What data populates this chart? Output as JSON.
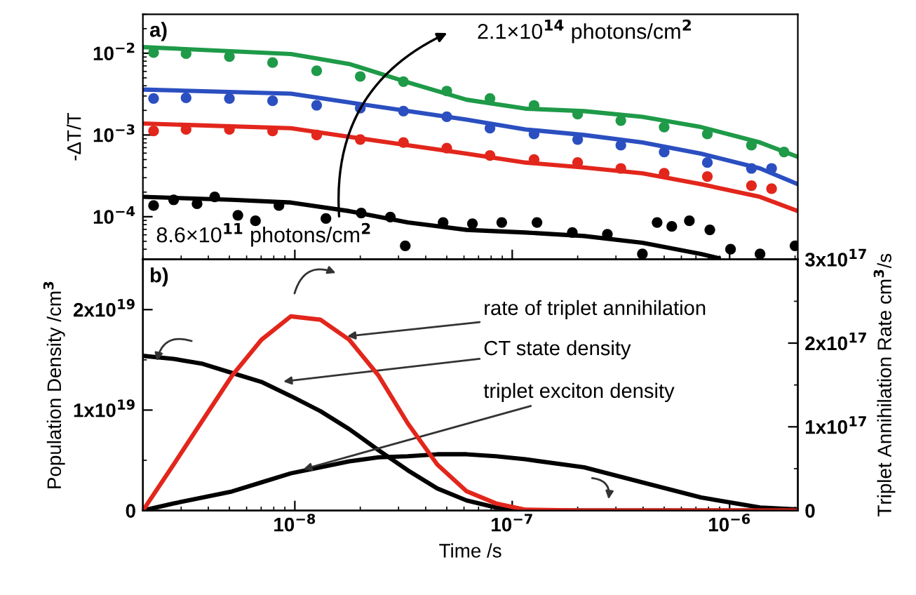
{
  "chart_data": [
    {
      "type": "line",
      "ylabel": "-ΔT/T",
      "log": "xy",
      "grid": false,
      "legend": false,
      "tick_labels": "y",
      "xlim": [
        2e-09,
        2.06e-06
      ],
      "xticks": [
        {
          "value": 1e-08,
          "label": null
        },
        {
          "value": 1e-07,
          "label": null
        },
        {
          "value": 1e-06,
          "label": null
        }
      ],
      "ylim": [
        3e-05,
        0.03
      ],
      "yticks": [
        {
          "value": 0.0001,
          "label": "10$^{−4}$"
        },
        {
          "value": 0.001,
          "label": "10$^{−3}$"
        },
        {
          "value": 0.01,
          "label": "10$^{−2}$"
        }
      ],
      "annotations": [
        "a)",
        "2.1×10$^{14}$ photons/cm$^{2}$",
        "8.6×10$^{11}$ photons/cm$^{2}$"
      ],
      "series": [
        {
          "type": "scatter",
          "marker": "circle",
          "color": "#1e9a48",
          "x": [
            2.24e-09,
            3.16e-09,
            5e-09,
            7.9e-09,
            1.26e-08,
            2e-08,
            3.16e-08,
            5e-08,
            7.9e-08,
            1.26e-07,
            2e-07,
            3.16e-07,
            5e-07,
            7.9e-07,
            1.26e-06,
            1.78e-06
          ],
          "values": [
            0.0102,
            0.0099,
            0.0091,
            0.0077,
            0.0061,
            0.0052,
            0.0045,
            0.00345,
            0.0028,
            0.0023,
            0.0018,
            0.0015,
            0.00125,
            0.00103,
            0.00075,
            0.00062
          ]
        },
        {
          "type": "scatter",
          "marker": "circle",
          "color": "#2b4fc0",
          "x": [
            2.24e-09,
            3.16e-09,
            5e-09,
            7.9e-09,
            1.26e-08,
            2e-08,
            3.16e-08,
            5e-08,
            7.9e-08,
            1.26e-07,
            2e-07,
            3.16e-07,
            5e-07,
            7.9e-07,
            1.26e-06,
            1.56e-06
          ],
          "values": [
            0.0028,
            0.00285,
            0.0028,
            0.00262,
            0.00231,
            0.00213,
            0.00196,
            0.00167,
            0.00121,
            0.00103,
            0.00088,
            0.00075,
            0.00062,
            0.00046,
            0.00039,
            0.00039
          ]
        },
        {
          "type": "scatter",
          "marker": "circle",
          "color": "#e2261c",
          "x": [
            2.24e-09,
            3.16e-09,
            5e-09,
            7.9e-09,
            1.26e-08,
            2e-08,
            3.16e-08,
            5e-08,
            7.9e-08,
            1.26e-07,
            2e-07,
            3.16e-07,
            5e-07,
            7.9e-07,
            1.26e-06,
            1.56e-06
          ],
          "values": [
            0.00112,
            0.00117,
            0.00117,
            0.00112,
            0.001,
            0.00088,
            0.00081,
            0.00069,
            0.00056,
            0.0005,
            0.00046,
            0.00039,
            0.00034,
            0.00031,
            0.00024,
            0.00022
          ]
        },
        {
          "type": "scatter",
          "marker": "circle",
          "color": "#000000",
          "x": [
            2.24e-09,
            2.77e-09,
            3.55e-09,
            4.28e-09,
            5.47e-09,
            6.59e-09,
            8.45e-09,
            1.39e-08,
            2.02e-08,
            2.75e-08,
            3.22e-08,
            4.81e-08,
            6.56e-08,
            8.95e-08,
            1.3e-07,
            1.89e-07,
            2.74e-07,
            3.97e-07,
            4.64e-07,
            5.42e-07,
            6.53e-07,
            8.11e-07,
            1.01e-06,
            1.38e-06,
            2e-06
          ],
          "values": [
            0.000137,
            0.000161,
            0.000144,
            0.000175,
            0.000104,
            8.9e-05,
            0.000137,
            9.5e-05,
            0.000111,
            9.9e-05,
            4.4e-05,
            8.5e-05,
            8.2e-05,
            8.5e-05,
            8.5e-05,
            6.4e-05,
            6.1e-05,
            3.5e-05,
            8.5e-05,
            7.6e-05,
            8.9e-05,
            6.9e-05,
            4e-05,
            3.5e-05,
            4.4e-05
          ]
        },
        {
          "color": "#1e9a48",
          "x": [
            2e-09,
            9.6e-09,
            1.78e-08,
            3.31e-08,
            6.17e-08,
            1.15e-07,
            2.14e-07,
            3.97e-07,
            7.39e-07,
            1.38e-06,
            2.06e-06
          ],
          "values": [
            0.0119,
            0.0098,
            0.0074,
            0.0044,
            0.0027,
            0.0021,
            0.00196,
            0.00167,
            0.00125,
            0.00081,
            0.00054
          ]
        },
        {
          "color": "#2b4fc0",
          "x": [
            2e-09,
            9.6e-09,
            1.78e-08,
            3.31e-08,
            6.17e-08,
            1.15e-07,
            2.14e-07,
            3.97e-07,
            7.39e-07,
            1.38e-06,
            2.06e-06
          ],
          "values": [
            0.0036,
            0.0032,
            0.0025,
            0.00196,
            0.00154,
            0.00117,
            0.001,
            0.00081,
            0.00059,
            0.00039,
            0.00025
          ]
        },
        {
          "color": "#e2261c",
          "x": [
            2e-09,
            9.6e-09,
            1.78e-08,
            3.31e-08,
            6.17e-08,
            1.15e-07,
            2.14e-07,
            3.97e-07,
            7.39e-07,
            1.38e-06,
            2.06e-06
          ],
          "values": [
            0.00138,
            0.00121,
            0.00095,
            0.00075,
            0.00059,
            0.00046,
            0.0004,
            0.00034,
            0.00025,
            0.000175,
            0.000117
          ]
        },
        {
          "color": "#000000",
          "x": [
            2e-09,
            5.14e-09,
            9.6e-09,
            1.78e-08,
            3.31e-08,
            6.17e-08,
            1.15e-07,
            2.14e-07,
            3.97e-07,
            7.39e-07,
            8.9e-07
          ],
          "values": [
            0.000175,
            0.000161,
            0.000149,
            0.000117,
            8.5e-05,
            6.9e-05,
            6.4e-05,
            5.8e-05,
            4.8e-05,
            3.5e-05,
            3.1e-05
          ]
        }
      ]
    },
    {
      "type": "line",
      "xlabel": "Time /s",
      "ylabel": "Population Density /cm$^{3}$",
      "y2label": "Triplet Annihilation Rate cm$^{3}$/s",
      "log": "x",
      "grid": false,
      "legend": false,
      "xlim": [
        2e-09,
        2.06e-06
      ],
      "xticks": [
        {
          "value": 1e-08,
          "label": "10$^{−8}$"
        },
        {
          "value": 1e-07,
          "label": "10$^{−7}$"
        },
        {
          "value": 1e-06,
          "label": "10$^{−6}$"
        }
      ],
      "ylim": [
        0,
        2.5e+19
      ],
      "yticks": [
        {
          "value": 0,
          "label": "0"
        },
        {
          "value": 1e+19,
          "label": "1x10$^{19}$"
        },
        {
          "value": 2e+19,
          "label": "2x10$^{19}$"
        }
      ],
      "y2lim": [
        0,
        3e+17
      ],
      "y2ticks": [
        {
          "value": 0,
          "label": "0"
        },
        {
          "value": 1e+17,
          "label": "1x10$^{17}$"
        },
        {
          "value": 2e+17,
          "label": "2x10$^{17}$"
        },
        {
          "value": 3e+17,
          "label": "3x10$^{17}$"
        }
      ],
      "annotations": [
        "b)",
        {
          "text": "rate of triplet annihilation",
          "x": 1.67e-08,
          "y": 1.73e+19
        },
        {
          "text": "CT state density",
          "x": 8.5e-09,
          "y": 1.28e+19
        },
        {
          "text": "triplet exciton density",
          "x": 1.05e-08,
          "y": 4e+18
        }
      ],
      "series": [
        {
          "axis": "y2",
          "color": "#e2261c",
          "x": [
            2e-09,
            2.77e-09,
            3.77e-09,
            5.14e-09,
            7.02e-09,
            9.58e-09,
            1.31e-08,
            1.78e-08,
            2.43e-08,
            3.31e-08,
            4.52e-08,
            6.17e-08,
            8.41e-08,
            1.15e-07,
            2.14e-07,
            3.97e-07,
            7.39e-07,
            1.38e-06,
            2.06e-06
          ],
          "values": [
            0,
            5.5e+16,
            1.08e+17,
            1.61e+17,
            2.04e+17,
            2.32e+17,
            2.28e+17,
            2.04e+17,
            1.61e+17,
            1.04e+17,
            5.5e+16,
            2.3e+16,
            8500000000000000.0,
            1000000000000000.0,
            0,
            0,
            0,
            0,
            0
          ]
        },
        {
          "color": "#000000",
          "x": [
            2e-09,
            2.77e-09,
            3.77e-09,
            5.14e-09,
            7.02e-09,
            9.58e-09,
            1.31e-08,
            1.78e-08,
            2.43e-08,
            3.31e-08,
            4.52e-08,
            6.17e-08,
            8.41e-08,
            1.15e-07,
            2.14e-07,
            3.97e-07,
            7.39e-07,
            1.38e-06,
            2.06e-06
          ],
          "values": [
            1.54e+19,
            1.51e+19,
            1.46e+19,
            1.37e+19,
            1.28e+19,
            1.14e+19,
            9.9e+18,
            8.1e+18,
            6e+18,
            4e+18,
            2.2e+18,
            1e+18,
            3e+17,
            0,
            0,
            0,
            0,
            0,
            0
          ]
        },
        {
          "color": "#000000",
          "x": [
            2e-09,
            2.77e-09,
            3.77e-09,
            5.14e-09,
            7.02e-09,
            9.58e-09,
            1.31e-08,
            1.78e-08,
            2.43e-08,
            3.31e-08,
            4.52e-08,
            6.17e-08,
            8.41e-08,
            1.15e-07,
            2.14e-07,
            3.97e-07,
            7.39e-07,
            1.38e-06,
            2.06e-06
          ],
          "values": [
            0,
            7e+17,
            1.3e+18,
            1.9e+18,
            2.8e+18,
            3.7e+18,
            4.3e+18,
            4.9e+18,
            5.3e+18,
            5.4e+18,
            5.6e+18,
            5.6e+18,
            5.4e+18,
            5.1e+18,
            4.3e+18,
            2.8e+18,
            1.3e+18,
            3e+17,
            1e+17
          ]
        }
      ]
    }
  ]
}
